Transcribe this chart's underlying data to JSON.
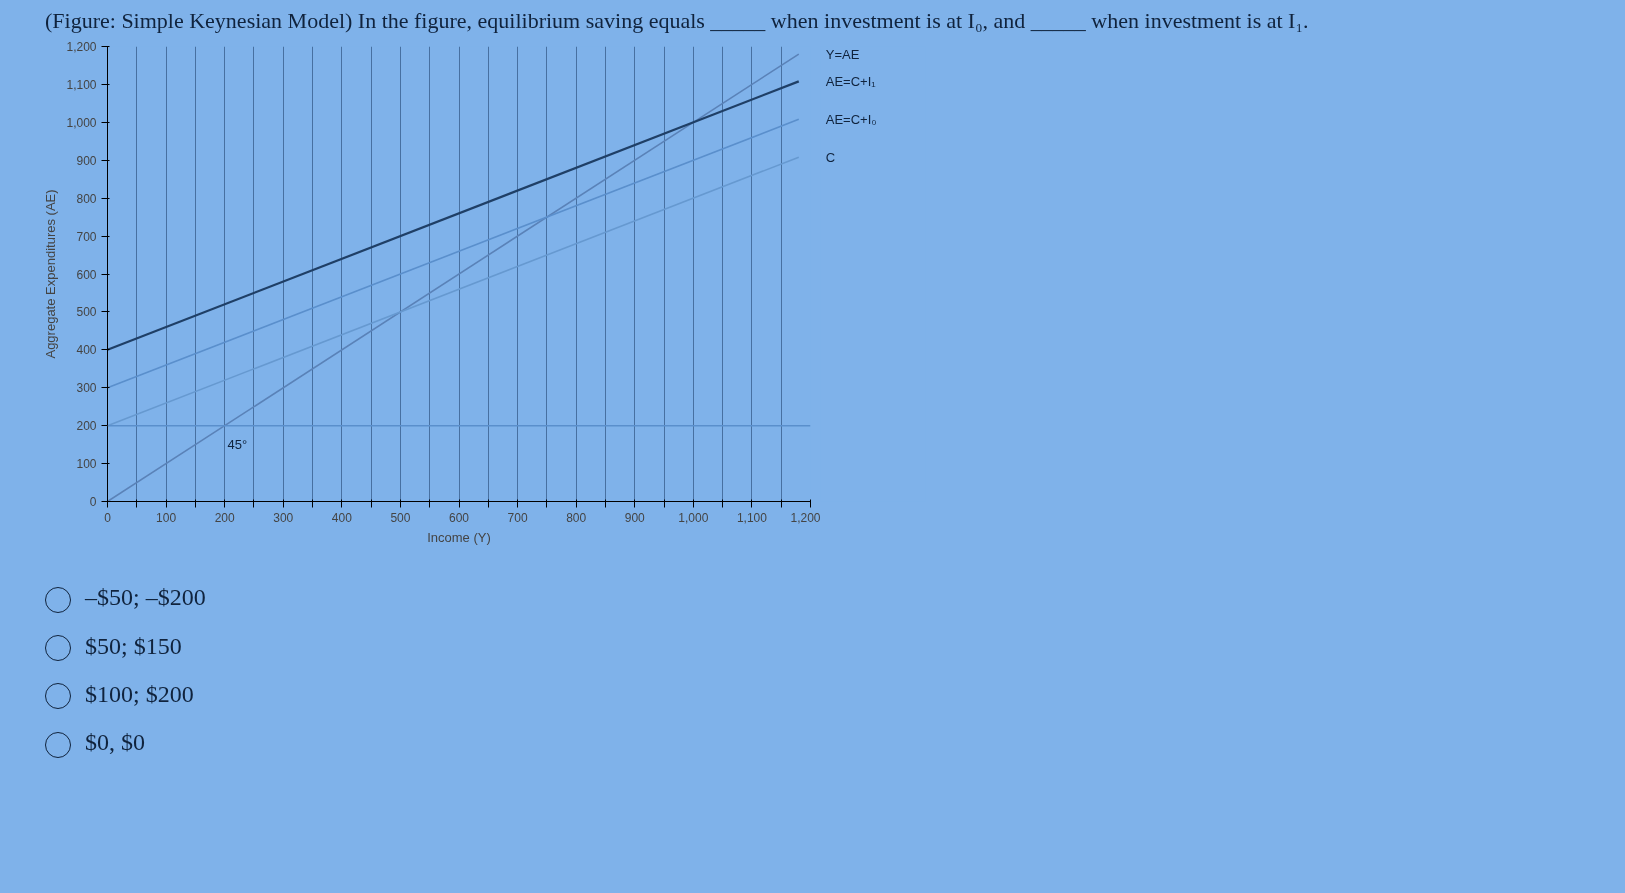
{
  "chart_data": {
    "type": "line",
    "title": "(Figure: Simple Keynesian Model) In the figure, equilibrium saving equals _____ when investment is at I₀, and _____ when investment is at I₁.",
    "xlabel": "Income (Y)",
    "ylabel": "Aggregate Expenditures (AE)",
    "x": [
      0,
      1180
    ],
    "series": [
      {
        "name": "Y=AE",
        "color": "#5a82b8",
        "values": [
          0,
          1180
        ]
      },
      {
        "name": "AE=C+I₁",
        "color": "#1f3f66",
        "values": [
          400,
          1108
        ]
      },
      {
        "name": "AE=C+I₀",
        "color": "#5a8fcc",
        "values": [
          300,
          1008
        ]
      },
      {
        "name": "C",
        "color": "#6699d0",
        "values": [
          200,
          908
        ]
      }
    ],
    "ref_lines": [
      {
        "axis": "y",
        "value": 200,
        "color": "#5a8fcc"
      }
    ],
    "xlim": [
      0,
      1200
    ],
    "ylim": [
      0,
      1200
    ],
    "xticks": [
      0,
      {
        "value": 50,
        "label": null
      },
      100,
      {
        "value": 150,
        "label": null
      },
      200,
      {
        "value": 250,
        "label": null
      },
      300,
      {
        "value": 350,
        "label": null
      },
      400,
      {
        "value": 450,
        "label": null
      },
      500,
      {
        "value": 550,
        "label": null
      },
      600,
      {
        "value": 650,
        "label": null
      },
      700,
      {
        "value": 750,
        "label": null
      },
      800,
      {
        "value": 850,
        "label": null
      },
      900,
      {
        "value": 950,
        "label": null
      },
      {
        "value": 1000,
        "label": "1,000"
      },
      {
        "value": 1050,
        "label": null
      },
      {
        "value": 1100,
        "label": "1,100"
      },
      {
        "value": 1150,
        "label": null
      },
      {
        "value": 1200,
        "label": "1,200"
      }
    ],
    "yticks": [
      0,
      100,
      200,
      300,
      400,
      500,
      600,
      700,
      800,
      900,
      {
        "value": 1000,
        "label": "1,000"
      },
      {
        "value": 1100,
        "label": "1,100"
      },
      {
        "value": 1200,
        "label": "1,200"
      }
    ],
    "grid": "x",
    "annotations": [
      "45°",
      "–$50; –$200",
      "$50; $150",
      "$100; $200",
      "$0, $0"
    ]
  }
}
